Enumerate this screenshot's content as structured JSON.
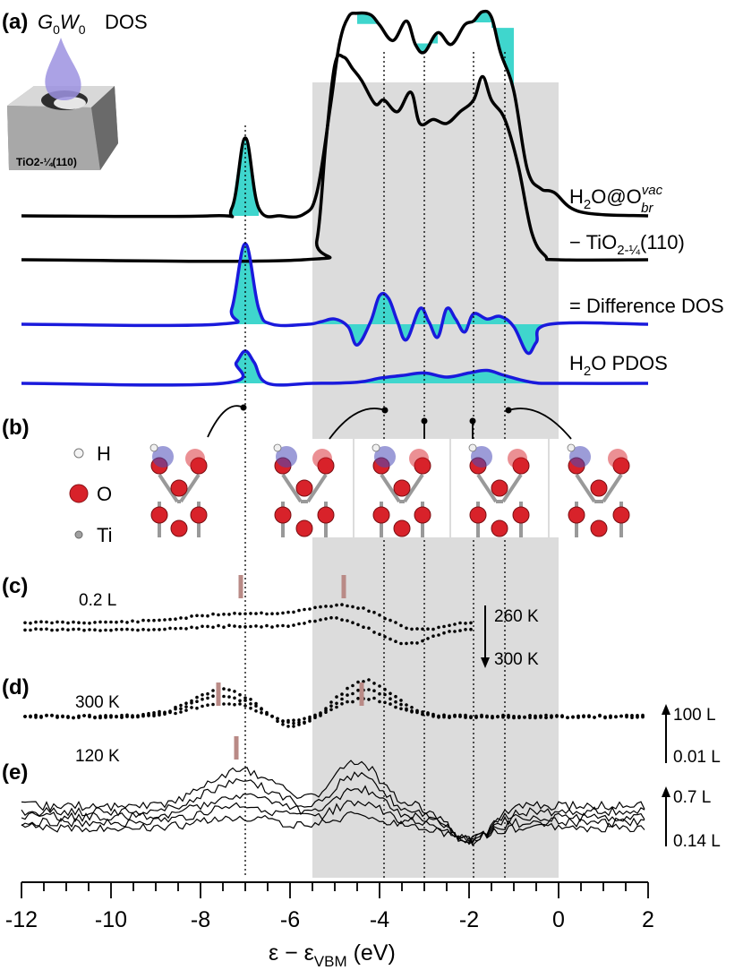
{
  "panels": {
    "a": "(a)",
    "b": "(b)",
    "c": "(c)",
    "d": "(d)",
    "e": "(e)"
  },
  "inset": {
    "method_main": "G",
    "method_sub0": "0",
    "method_main2": "W",
    "method_sub1": "0",
    "dos": "DOS",
    "slab_label": "TiO2-¼(110)"
  },
  "curve_labels": {
    "h2o_vac": {
      "main": "H",
      "sub": "2",
      "rest": "O@O",
      "sup": "vac",
      "sub2": "br"
    },
    "tio2": {
      "main": "− TiO",
      "sub": "2-¼",
      "rest": "(110)"
    },
    "difference": "= Difference DOS",
    "h2o_pdos": {
      "main": "H",
      "sub": "2",
      "rest": "O PDOS"
    }
  },
  "legend_b": {
    "h": "H",
    "o": "O",
    "ti": "Ti"
  },
  "panel_c": {
    "label": "0.2 L",
    "arrow_top": "260 K",
    "arrow_bottom": "300 K"
  },
  "panel_d": {
    "label": "300 K",
    "arrow_top": "100 L",
    "arrow_bottom": "0.01 L"
  },
  "panel_e": {
    "label": "120 K",
    "arrow_top": "0.7 L",
    "arrow_bottom": "0.14 L"
  },
  "colors": {
    "fill": "#3fd6cd",
    "shade": "#dcdcdc",
    "difference": "#1a1adc",
    "marker": "#b98a86",
    "oxygen": "#d8222a",
    "hydrogen": "#f0f0f0",
    "titanium": "#b0b0b0",
    "orbital": "#4a4ab8"
  },
  "chart_data": {
    "type": "line",
    "xlabel": {
      "main": "ε − ε",
      "sub": "VBM",
      "unit": " (eV)"
    },
    "xlim": [
      -12,
      2
    ],
    "xticks": [
      -12,
      -10,
      -8,
      -6,
      -4,
      -2,
      0,
      2
    ],
    "shaded_region": [
      -5.5,
      0
    ],
    "vertical_lines": [
      -7.0,
      -3.9,
      -3.0,
      -1.9,
      -1.2
    ],
    "dos_series": [
      {
        "key": "h2o_vac",
        "color": "#000000",
        "fill_peaks": [
          -7.0,
          -4.2,
          -3.0,
          -1.7,
          -1.2
        ],
        "points": [
          [
            -12,
            0
          ],
          [
            -7.8,
            0
          ],
          [
            -7.3,
            0.1
          ],
          [
            -7.0,
            1.0
          ],
          [
            -6.7,
            0.1
          ],
          [
            -6.2,
            0
          ],
          [
            -5.7,
            0.02
          ],
          [
            -5.4,
            0.3
          ],
          [
            -5.1,
            1.4
          ],
          [
            -4.9,
            2.2
          ],
          [
            -4.7,
            2.55
          ],
          [
            -4.5,
            2.6
          ],
          [
            -4.2,
            2.58
          ],
          [
            -4.0,
            2.45
          ],
          [
            -3.7,
            2.25
          ],
          [
            -3.4,
            2.5
          ],
          [
            -3.2,
            2.2
          ],
          [
            -3.0,
            2.1
          ],
          [
            -2.7,
            2.35
          ],
          [
            -2.4,
            2.2
          ],
          [
            -2.1,
            2.45
          ],
          [
            -1.9,
            2.5
          ],
          [
            -1.7,
            2.62
          ],
          [
            -1.5,
            2.55
          ],
          [
            -1.3,
            2.1
          ],
          [
            -1.0,
            1.6
          ],
          [
            -0.7,
            0.6
          ],
          [
            -0.4,
            0.35
          ],
          [
            -0.1,
            0.3
          ],
          [
            0.5,
            0.05
          ],
          [
            2,
            0
          ]
        ]
      },
      {
        "key": "tio2",
        "color": "#000000",
        "points": [
          [
            -12,
            0
          ],
          [
            -5.7,
            0
          ],
          [
            -5.4,
            0.25
          ],
          [
            -5.2,
            1.5
          ],
          [
            -5.0,
            2.5
          ],
          [
            -4.8,
            2.6
          ],
          [
            -4.6,
            2.45
          ],
          [
            -4.4,
            2.3
          ],
          [
            -4.1,
            2.0
          ],
          [
            -3.9,
            2.05
          ],
          [
            -3.6,
            1.9
          ],
          [
            -3.3,
            2.15
          ],
          [
            -3.1,
            1.75
          ],
          [
            -2.8,
            1.8
          ],
          [
            -2.5,
            1.75
          ],
          [
            -2.2,
            1.9
          ],
          [
            -1.9,
            2.05
          ],
          [
            -1.7,
            2.35
          ],
          [
            -1.5,
            2.05
          ],
          [
            -1.2,
            1.8
          ],
          [
            -0.9,
            1.2
          ],
          [
            -0.6,
            0.35
          ],
          [
            -0.3,
            0.05
          ],
          [
            0,
            0
          ],
          [
            2,
            0
          ]
        ]
      },
      {
        "key": "difference",
        "color": "#1a1adc",
        "fill": true,
        "points": [
          [
            -12,
            0
          ],
          [
            -7.6,
            0
          ],
          [
            -7.3,
            0.3
          ],
          [
            -7.0,
            1.55
          ],
          [
            -6.7,
            0.3
          ],
          [
            -6.4,
            0
          ],
          [
            -5.6,
            0
          ],
          [
            -5.3,
            0.05
          ],
          [
            -5.0,
            0.1
          ],
          [
            -4.7,
            -0.05
          ],
          [
            -4.5,
            -0.4
          ],
          [
            -4.2,
            0.05
          ],
          [
            -4.0,
            0.55
          ],
          [
            -3.8,
            0.5
          ],
          [
            -3.6,
            0.05
          ],
          [
            -3.4,
            -0.3
          ],
          [
            -3.1,
            0.3
          ],
          [
            -2.9,
            0.05
          ],
          [
            -2.7,
            -0.25
          ],
          [
            -2.5,
            0.3
          ],
          [
            -2.3,
            0.1
          ],
          [
            -2.1,
            -0.15
          ],
          [
            -1.9,
            0.2
          ],
          [
            -1.6,
            0.1
          ],
          [
            -1.3,
            0.15
          ],
          [
            -1.0,
            -0.05
          ],
          [
            -0.7,
            -0.55
          ],
          [
            -0.5,
            -0.35
          ],
          [
            -0.2,
            0
          ],
          [
            2,
            0
          ]
        ]
      },
      {
        "key": "h2o_pdos",
        "color": "#1a1adc",
        "fill": true,
        "points": [
          [
            -12,
            0
          ],
          [
            -7.5,
            0
          ],
          [
            -7.2,
            0.4
          ],
          [
            -7.0,
            0.62
          ],
          [
            -6.8,
            0.4
          ],
          [
            -6.5,
            0
          ],
          [
            -5.5,
            0
          ],
          [
            -4.5,
            0.02
          ],
          [
            -4.0,
            0.1
          ],
          [
            -3.5,
            0.15
          ],
          [
            -3.0,
            0.2
          ],
          [
            -2.5,
            0.12
          ],
          [
            -2.0,
            0.2
          ],
          [
            -1.6,
            0.25
          ],
          [
            -1.2,
            0.15
          ],
          [
            -0.6,
            0.02
          ],
          [
            0,
            0
          ],
          [
            2,
            0
          ]
        ]
      }
    ],
    "exp_markers": {
      "c": [
        -7.1,
        -4.8
      ],
      "d": [
        -7.6,
        -4.4
      ],
      "e": [
        -7.2
      ]
    }
  }
}
